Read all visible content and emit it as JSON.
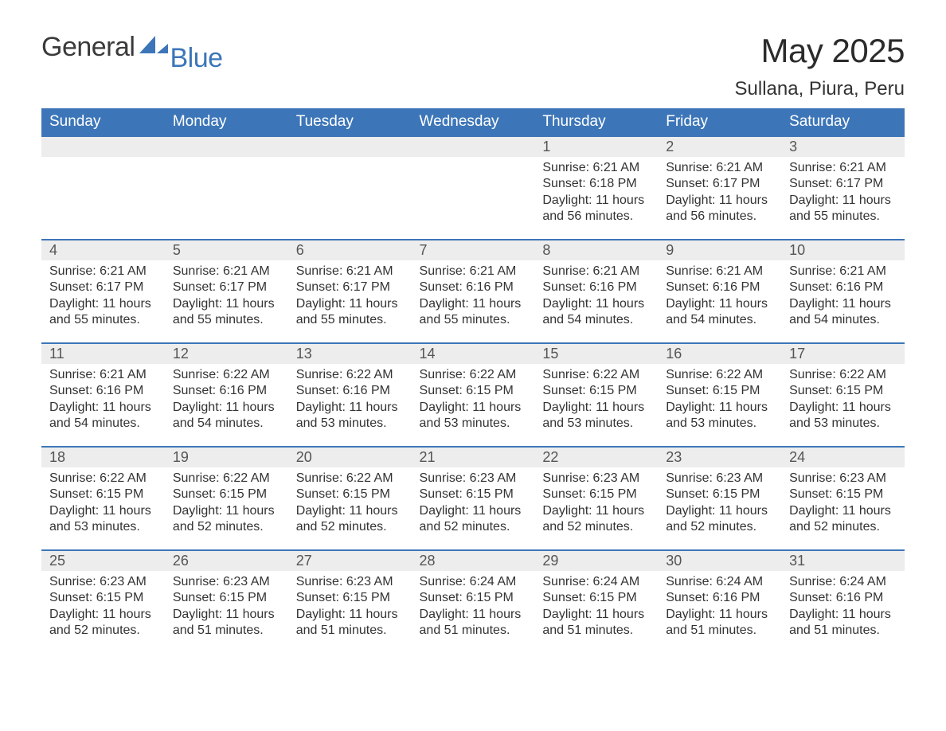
{
  "brand": {
    "general": "General",
    "blue": "Blue",
    "mark_fill": "#3d76b8"
  },
  "header": {
    "title": "May 2025",
    "location": "Sullana, Piura, Peru"
  },
  "style": {
    "header_bg": "#3d76b8",
    "header_text": "#ffffff",
    "daynum_bg": "#ededed",
    "daynum_border": "#3d76b8",
    "body_text": "#333333",
    "font_family": "Segoe UI, Arial, Helvetica, sans-serif",
    "title_fontsize": 42,
    "location_fontsize": 24,
    "weekday_fontsize": 19,
    "daynum_fontsize": 18,
    "cell_fontsize": 16
  },
  "weekdays": [
    "Sunday",
    "Monday",
    "Tuesday",
    "Wednesday",
    "Thursday",
    "Friday",
    "Saturday"
  ],
  "labels": {
    "sunrise": "Sunrise: ",
    "sunset": "Sunset: ",
    "daylight": "Daylight: "
  },
  "weeks": [
    [
      null,
      null,
      null,
      null,
      {
        "n": "1",
        "sr": "6:21 AM",
        "ss": "6:18 PM",
        "dl": "11 hours and 56 minutes."
      },
      {
        "n": "2",
        "sr": "6:21 AM",
        "ss": "6:17 PM",
        "dl": "11 hours and 56 minutes."
      },
      {
        "n": "3",
        "sr": "6:21 AM",
        "ss": "6:17 PM",
        "dl": "11 hours and 55 minutes."
      }
    ],
    [
      {
        "n": "4",
        "sr": "6:21 AM",
        "ss": "6:17 PM",
        "dl": "11 hours and 55 minutes."
      },
      {
        "n": "5",
        "sr": "6:21 AM",
        "ss": "6:17 PM",
        "dl": "11 hours and 55 minutes."
      },
      {
        "n": "6",
        "sr": "6:21 AM",
        "ss": "6:17 PM",
        "dl": "11 hours and 55 minutes."
      },
      {
        "n": "7",
        "sr": "6:21 AM",
        "ss": "6:16 PM",
        "dl": "11 hours and 55 minutes."
      },
      {
        "n": "8",
        "sr": "6:21 AM",
        "ss": "6:16 PM",
        "dl": "11 hours and 54 minutes."
      },
      {
        "n": "9",
        "sr": "6:21 AM",
        "ss": "6:16 PM",
        "dl": "11 hours and 54 minutes."
      },
      {
        "n": "10",
        "sr": "6:21 AM",
        "ss": "6:16 PM",
        "dl": "11 hours and 54 minutes."
      }
    ],
    [
      {
        "n": "11",
        "sr": "6:21 AM",
        "ss": "6:16 PM",
        "dl": "11 hours and 54 minutes."
      },
      {
        "n": "12",
        "sr": "6:22 AM",
        "ss": "6:16 PM",
        "dl": "11 hours and 54 minutes."
      },
      {
        "n": "13",
        "sr": "6:22 AM",
        "ss": "6:16 PM",
        "dl": "11 hours and 53 minutes."
      },
      {
        "n": "14",
        "sr": "6:22 AM",
        "ss": "6:15 PM",
        "dl": "11 hours and 53 minutes."
      },
      {
        "n": "15",
        "sr": "6:22 AM",
        "ss": "6:15 PM",
        "dl": "11 hours and 53 minutes."
      },
      {
        "n": "16",
        "sr": "6:22 AM",
        "ss": "6:15 PM",
        "dl": "11 hours and 53 minutes."
      },
      {
        "n": "17",
        "sr": "6:22 AM",
        "ss": "6:15 PM",
        "dl": "11 hours and 53 minutes."
      }
    ],
    [
      {
        "n": "18",
        "sr": "6:22 AM",
        "ss": "6:15 PM",
        "dl": "11 hours and 53 minutes."
      },
      {
        "n": "19",
        "sr": "6:22 AM",
        "ss": "6:15 PM",
        "dl": "11 hours and 52 minutes."
      },
      {
        "n": "20",
        "sr": "6:22 AM",
        "ss": "6:15 PM",
        "dl": "11 hours and 52 minutes."
      },
      {
        "n": "21",
        "sr": "6:23 AM",
        "ss": "6:15 PM",
        "dl": "11 hours and 52 minutes."
      },
      {
        "n": "22",
        "sr": "6:23 AM",
        "ss": "6:15 PM",
        "dl": "11 hours and 52 minutes."
      },
      {
        "n": "23",
        "sr": "6:23 AM",
        "ss": "6:15 PM",
        "dl": "11 hours and 52 minutes."
      },
      {
        "n": "24",
        "sr": "6:23 AM",
        "ss": "6:15 PM",
        "dl": "11 hours and 52 minutes."
      }
    ],
    [
      {
        "n": "25",
        "sr": "6:23 AM",
        "ss": "6:15 PM",
        "dl": "11 hours and 52 minutes."
      },
      {
        "n": "26",
        "sr": "6:23 AM",
        "ss": "6:15 PM",
        "dl": "11 hours and 51 minutes."
      },
      {
        "n": "27",
        "sr": "6:23 AM",
        "ss": "6:15 PM",
        "dl": "11 hours and 51 minutes."
      },
      {
        "n": "28",
        "sr": "6:24 AM",
        "ss": "6:15 PM",
        "dl": "11 hours and 51 minutes."
      },
      {
        "n": "29",
        "sr": "6:24 AM",
        "ss": "6:15 PM",
        "dl": "11 hours and 51 minutes."
      },
      {
        "n": "30",
        "sr": "6:24 AM",
        "ss": "6:16 PM",
        "dl": "11 hours and 51 minutes."
      },
      {
        "n": "31",
        "sr": "6:24 AM",
        "ss": "6:16 PM",
        "dl": "11 hours and 51 minutes."
      }
    ]
  ]
}
